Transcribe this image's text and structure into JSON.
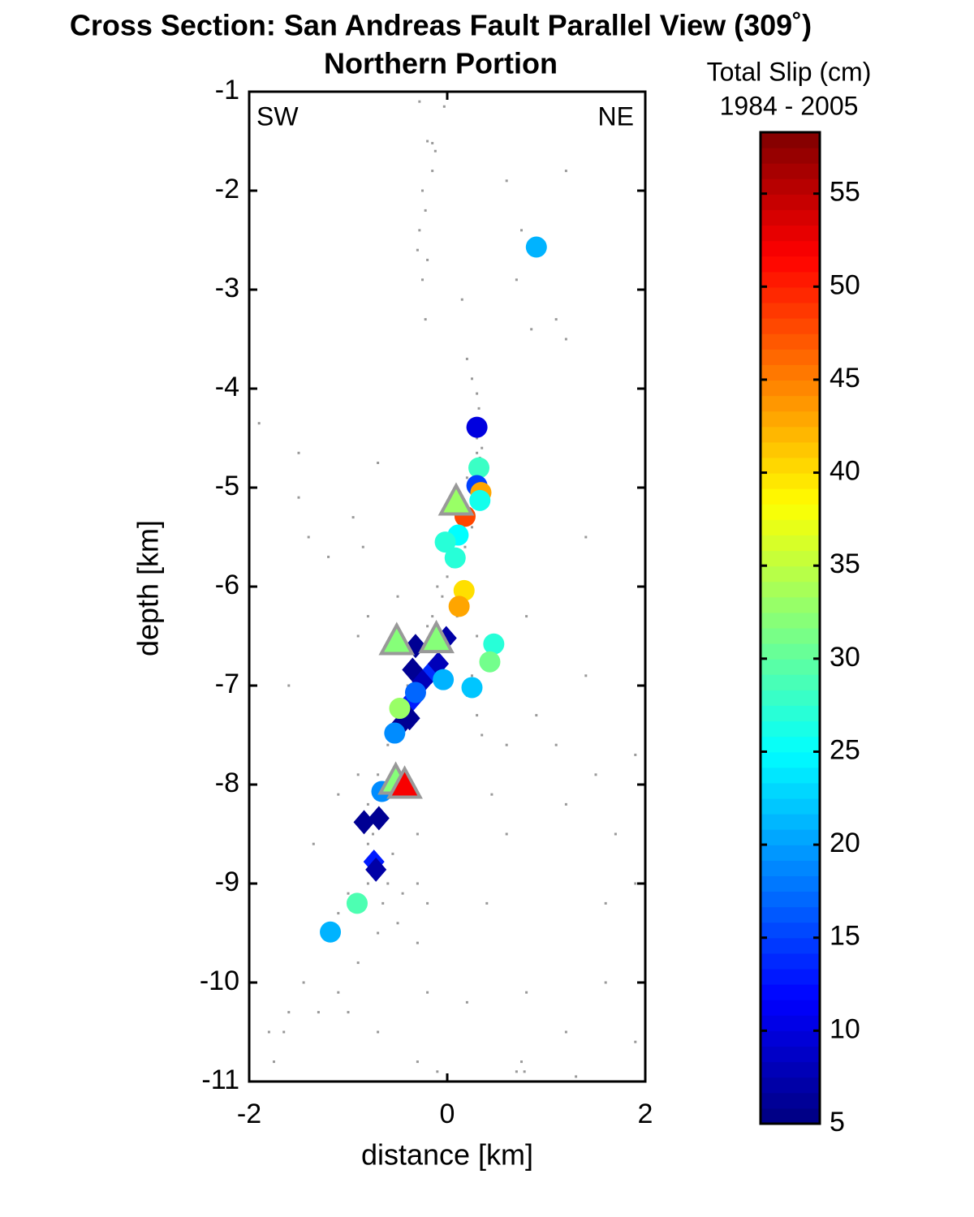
{
  "chart_data": {
    "type": "scatter",
    "title": "Cross Section:  San Andreas Fault Parallel View (309˚)",
    "subtitle": "Northern Portion",
    "xlabel": "distance [km]",
    "ylabel": "depth [km]",
    "annotations": [
      "SW",
      "NE"
    ],
    "colorbar_label": [
      "Total Slip (cm)",
      "1984 - 2005"
    ],
    "colormap": "jet",
    "clim": [
      5,
      58.3
    ],
    "cticks": [
      5,
      10,
      15,
      20,
      25,
      30,
      35,
      40,
      45,
      50,
      55
    ],
    "xlim": [
      -2,
      2
    ],
    "xticks": [
      -2,
      0,
      2
    ],
    "ylim": [
      -11,
      -1
    ],
    "yticks": [
      -1,
      -2,
      -3,
      -4,
      -5,
      -6,
      -7,
      -8,
      -9,
      -10,
      -11
    ],
    "background": {
      "color": "#999999",
      "x": [
        -0.28,
        -0.03,
        -0.2,
        -0.15,
        -0.12,
        -0.15,
        -0.25,
        -0.22,
        -0.28,
        -0.3,
        -0.2,
        -0.25,
        0.6,
        1.2,
        0.75,
        -0.22,
        0.15,
        0.7,
        1.1,
        1.2,
        0.85,
        0.2,
        0.25,
        0.3,
        0.32,
        0.28,
        0.35,
        0.33,
        0.3,
        -1.9,
        -1.5,
        -1.5,
        -0.7,
        0.2,
        0.25,
        0.18,
        0.05,
        0.0,
        -0.1,
        -0.05,
        0.05,
        -0.15,
        -0.2,
        0.1,
        -0.95,
        -0.85,
        -1.4,
        -1.2,
        -0.9,
        -0.8,
        -0.5,
        0.3,
        0.25,
        0.2,
        0.3,
        0.35,
        0.8,
        1.4,
        1.4,
        0.9,
        1.1,
        1.5,
        1.9,
        0.6,
        1.2,
        0.45,
        0.6,
        1.7,
        -1.6,
        -1.35,
        -1.1,
        -0.9,
        -0.8,
        -0.3,
        -0.55,
        -0.6,
        -0.45,
        -0.3,
        -0.2,
        -0.8,
        -1.0,
        -1.1,
        -0.5,
        -0.7,
        -0.9,
        -0.3,
        0.4,
        1.6,
        1.9,
        -1.45,
        -1.3,
        -1.6,
        -1.65,
        -1.8,
        -1.75,
        -1.8,
        -1.1,
        -1.0,
        -0.7,
        -0.2,
        0.2,
        0.8,
        1.2,
        1.6,
        1.9,
        0.75,
        0.78,
        0.7,
        -0.3,
        -0.1,
        1.3,
        -0.05,
        -0.1,
        -0.4,
        -0.6,
        -0.7,
        -0.75,
        -0.8,
        -0.65,
        0.0,
        0.3,
        0.27
      ],
      "y": [
        -1.1,
        -1.15,
        -1.5,
        -1.52,
        -1.6,
        -1.8,
        -2.0,
        -2.2,
        -2.4,
        -2.6,
        -2.7,
        -2.9,
        -1.9,
        -1.8,
        -2.4,
        -3.3,
        -3.1,
        -2.9,
        -3.3,
        -3.5,
        -3.4,
        -3.7,
        -3.9,
        -4.05,
        -4.2,
        -4.3,
        -4.6,
        -4.7,
        -4.65,
        -4.35,
        -4.65,
        -5.1,
        -4.75,
        -4.9,
        -5.4,
        -5.6,
        -5.8,
        -5.9,
        -6.0,
        -6.1,
        -6.2,
        -6.3,
        -6.4,
        -6.3,
        -5.3,
        -5.6,
        -5.5,
        -5.7,
        -6.5,
        -6.3,
        -6.1,
        -6.5,
        -6.9,
        -7.1,
        -7.3,
        -7.5,
        -6.3,
        -6.9,
        -5.5,
        -7.3,
        -7.6,
        -7.9,
        -7.7,
        -7.6,
        -8.2,
        -8.1,
        -8.5,
        -8.5,
        -7.0,
        -8.6,
        -8.1,
        -7.9,
        -8.2,
        -8.5,
        -8.7,
        -9.0,
        -9.1,
        -9.0,
        -9.2,
        -9.0,
        -9.1,
        -9.3,
        -9.4,
        -9.5,
        -9.8,
        -9.6,
        -9.2,
        -9.2,
        -9.0,
        -10.0,
        -10.3,
        -10.3,
        -10.5,
        -10.5,
        -10.8,
        -11.0,
        -10.1,
        -10.3,
        -10.5,
        -10.1,
        -10.2,
        -10.1,
        -10.5,
        -10.0,
        -10.6,
        -10.8,
        -10.9,
        -10.9,
        -10.8,
        -10.9,
        -10.95,
        -6.5,
        -6.7,
        -7.0,
        -7.6,
        -7.9,
        -8.5,
        -8.6,
        -9.2,
        -6.9,
        -4.5,
        -5.2
      ]
    },
    "series": [
      {
        "marker": "diamond",
        "x": [
          -0.32,
          -0.01,
          -0.35,
          -0.16,
          -0.09,
          -0.25,
          -0.35,
          -0.38,
          -0.5,
          -0.84,
          -0.69,
          -0.74,
          -0.72
        ],
        "y": [
          -6.6,
          -6.52,
          -6.84,
          -6.86,
          -6.78,
          -6.96,
          -7.14,
          -7.33,
          -7.43,
          -8.38,
          -8.34,
          -8.78,
          -8.86
        ],
        "values": [
          6,
          7,
          6,
          14,
          8,
          8,
          13,
          6,
          6,
          6,
          6,
          13,
          7
        ]
      },
      {
        "marker": "circle",
        "x": [
          0.9,
          0.3,
          0.32,
          0.3,
          0.34,
          0.33,
          0.18,
          0.11,
          -0.02,
          0.08,
          0.17,
          0.12,
          0.47,
          0.43,
          -0.04,
          0.25,
          -0.32,
          -0.48,
          -0.53,
          -0.66,
          -0.91,
          -1.18
        ],
        "y": [
          -2.57,
          -4.39,
          -4.8,
          -4.98,
          -5.05,
          -5.13,
          -5.29,
          -5.48,
          -5.55,
          -5.71,
          -6.04,
          -6.2,
          -6.58,
          -6.76,
          -6.94,
          -7.02,
          -7.07,
          -7.23,
          -7.48,
          -8.07,
          -9.2,
          -9.49
        ],
        "values": [
          21,
          10,
          28,
          15,
          43,
          26,
          48,
          25,
          27,
          27,
          40,
          43,
          27,
          31,
          21,
          22,
          17,
          33,
          19,
          19,
          29,
          21
        ]
      },
      {
        "marker": "triangle",
        "edgecolor": "#999999",
        "x": [
          0.09,
          -0.51,
          -0.11,
          -0.52,
          -0.43
        ],
        "y": [
          -5.16,
          -6.57,
          -6.55,
          -7.98,
          -8.02
        ],
        "values": [
          33,
          32,
          32,
          32,
          52
        ]
      }
    ]
  }
}
